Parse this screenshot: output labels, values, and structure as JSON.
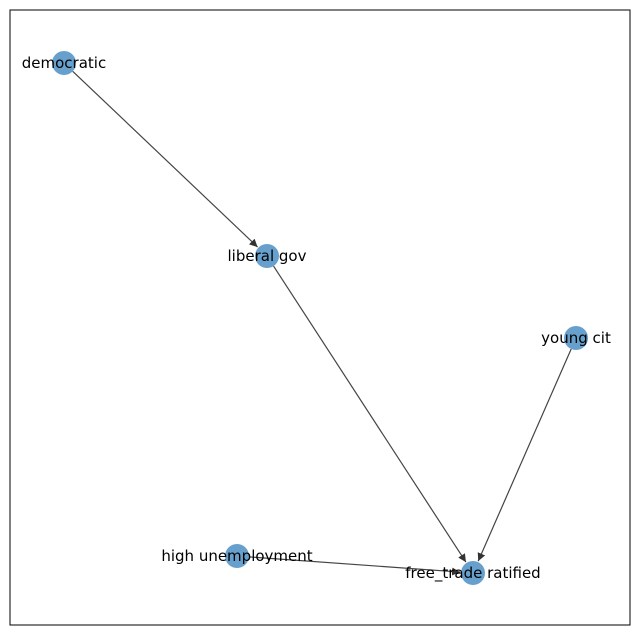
{
  "graph": {
    "type": "directed-network",
    "node_color": "#4C8FC4",
    "edge_color": "#444444",
    "frame_color": "#000000",
    "nodes": [
      {
        "id": "democratic",
        "label": "democratic"
      },
      {
        "id": "liberal_gov",
        "label": "liberal gov"
      },
      {
        "id": "young_cit",
        "label": "young cit"
      },
      {
        "id": "high_unemployment",
        "label": "high unemployment"
      },
      {
        "id": "free_trade_ratified",
        "label": "free_trade ratified"
      }
    ],
    "edges": [
      {
        "source": "democratic",
        "target": "liberal_gov"
      },
      {
        "source": "liberal_gov",
        "target": "free_trade_ratified"
      },
      {
        "source": "young_cit",
        "target": "free_trade_ratified"
      },
      {
        "source": "high_unemployment",
        "target": "free_trade_ratified"
      }
    ]
  }
}
